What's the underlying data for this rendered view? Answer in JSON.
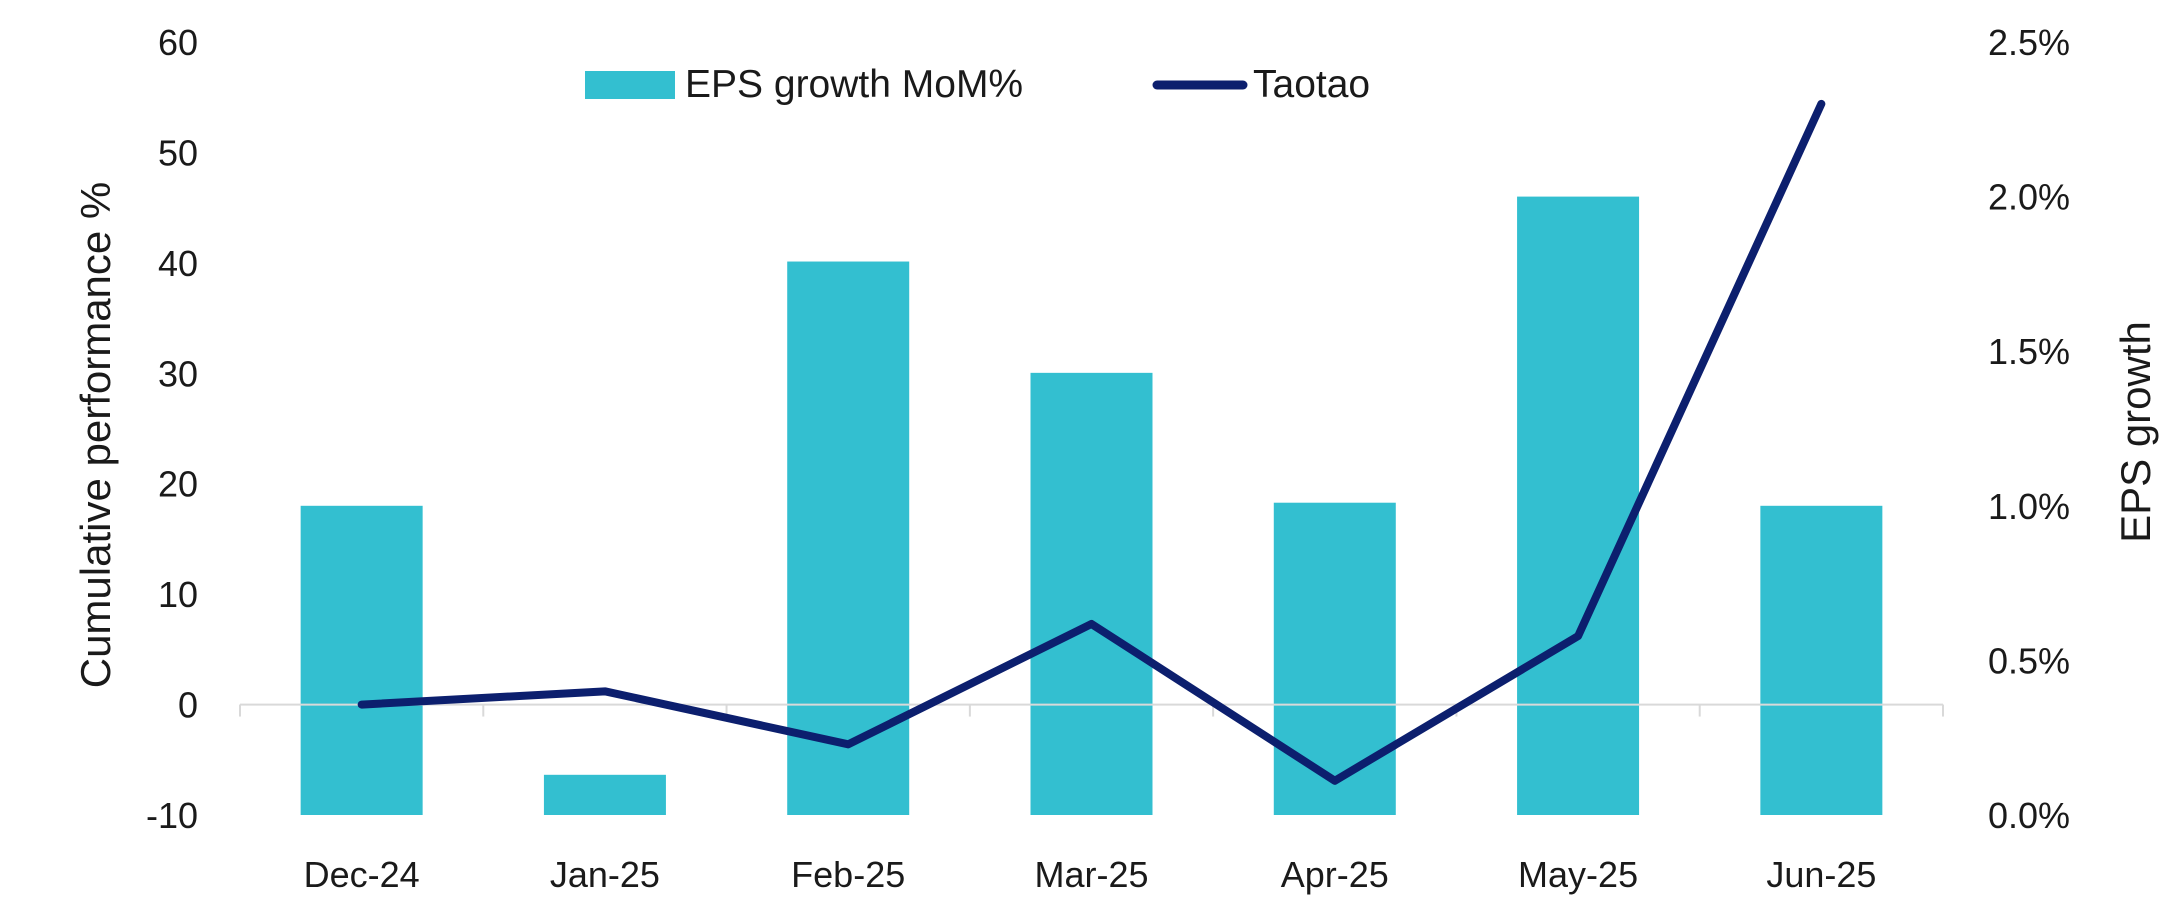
{
  "chart_data": {
    "type": "bar",
    "categories": [
      "Dec-24",
      "Jan-25",
      "Feb-25",
      "Mar-25",
      "Apr-25",
      "May-25",
      "Jun-25"
    ],
    "series": [
      {
        "name": "EPS growth MoM%",
        "type": "bar",
        "axis": "right",
        "values": [
          1.0,
          0.13,
          1.79,
          1.43,
          1.01,
          2.0,
          1.0
        ],
        "color": "#33bfd0"
      },
      {
        "name": "Taotao",
        "type": "line",
        "axis": "left",
        "values": [
          0,
          1.2,
          -3.6,
          7.3,
          -6.9,
          6.2,
          54.4
        ],
        "color": "#0c1f6e"
      }
    ],
    "ylabel": "Cumulative performance %",
    "ylabel_right": "EPS growth",
    "ylim": [
      -10,
      60
    ],
    "ylim_right": [
      0,
      2.5
    ],
    "yticks": [
      "60",
      "50",
      "40",
      "30",
      "20",
      "10",
      "0",
      "-10"
    ],
    "yticks_right": [
      "2.5%",
      "2.0%",
      "1.5%",
      "1.0%",
      "0.5%",
      "0.0%"
    ],
    "grid": false,
    "legend": "top-center",
    "zero_line_color": "#d9d9d9"
  }
}
